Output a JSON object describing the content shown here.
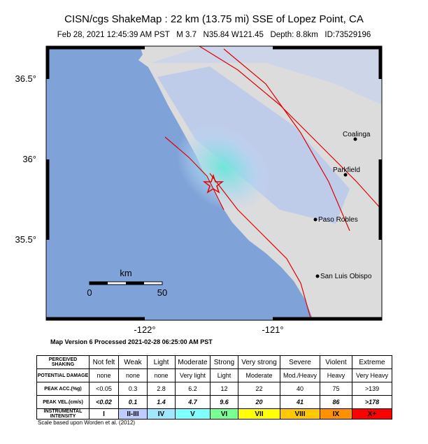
{
  "header": {
    "title": "CISN/cgs ShakeMap : 22 km (13.75 mi) SSE of Lopez Point, CA",
    "subtitle": "Feb 28, 2021 12:45:39 AM PST   M 3.7   N35.84 W121.45   Depth: 8.8km   ID:73529196"
  },
  "map": {
    "lat_labels": [
      "36.5°",
      "36°",
      "35.5°"
    ],
    "lon_labels": [
      "-122°",
      "-121°"
    ],
    "cities": [
      "Coalinga",
      "Parkfield",
      "Paso Robles",
      "San Luis Obispo"
    ],
    "scale": {
      "unit": "km",
      "labels": [
        "0",
        "50"
      ]
    }
  },
  "processed": "Map Version 6 Processed 2021-02-28 06:25:00 AM PST",
  "table": {
    "rows": [
      [
        "PERCEIVED SHAKING",
        "Not felt",
        "Weak",
        "Light",
        "Moderate",
        "Strong",
        "Very strong",
        "Severe",
        "Violent",
        "Extreme"
      ],
      [
        "POTENTIAL DAMAGE",
        "none",
        "none",
        "none",
        "Very light",
        "Light",
        "Moderate",
        "Mod./Heavy",
        "Heavy",
        "Very Heavy"
      ],
      [
        "PEAK ACC.(%g)",
        "<0.05",
        "0.3",
        "2.8",
        "6.2",
        "12",
        "22",
        "40",
        "75",
        ">139"
      ],
      [
        "PEAK VEL.(cm/s)",
        "<0.02",
        "0.1",
        "1.4",
        "4.7",
        "9.6",
        "20",
        "41",
        "86",
        ">178"
      ],
      [
        "INSTRUMENTAL INTENSITY",
        "I",
        "II-III",
        "IV",
        "V",
        "VI",
        "VII",
        "VIII",
        "IX",
        "X+"
      ]
    ]
  },
  "footnote": "Scale based upon Worden et al. (2012)"
}
